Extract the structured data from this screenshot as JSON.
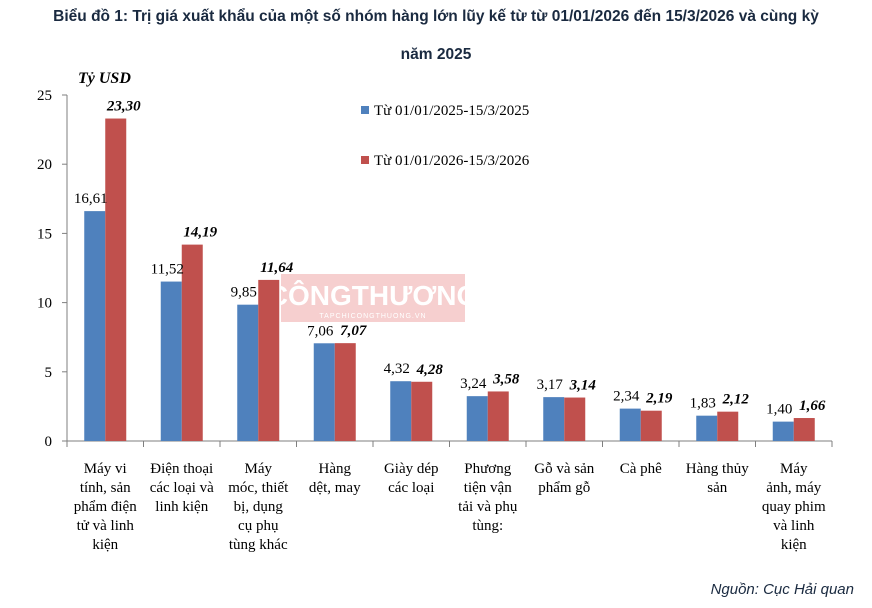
{
  "title_line1": "Biểu đồ 1: Trị giá xuất khẩu của một số nhóm hàng lớn lũy kế từ từ 01/01/2026 đến 15/3/2026 và cùng kỳ",
  "title_line2": "năm 2025",
  "source": "Nguồn: Cục Hải quan",
  "watermark": {
    "main": "CÔNGTHƯƠNG",
    "sub": "TAPCHICONGTHUONG.VN"
  },
  "colors": {
    "series_2025": "#4f81bd",
    "series_2026": "#c0504d",
    "text": "#000000"
  },
  "chart_data": {
    "type": "bar",
    "ylabel": "Tỷ USD",
    "ylim": [
      0,
      25
    ],
    "yticks": [
      0,
      5,
      10,
      15,
      20,
      25
    ],
    "legend_position": "top-center",
    "grid": false,
    "categories": [
      [
        "Máy vi",
        "tính, sản",
        "phẩm điện",
        "tử và linh",
        "kiện"
      ],
      [
        "Điện thoại",
        "các loại và",
        "linh kiện"
      ],
      [
        "Máy",
        "móc, thiết",
        "bị, dụng",
        "cụ phụ",
        "tùng khác"
      ],
      [
        "Hàng",
        "dệt, may"
      ],
      [
        "Giày dép",
        "các loại"
      ],
      [
        "Phương",
        "tiện vận",
        "tải và phụ",
        "tùng:"
      ],
      [
        "Gỗ và sản",
        "phẩm gỗ"
      ],
      [
        "Cà phê"
      ],
      [
        "Hàng thủy",
        "sản"
      ],
      [
        "Máy",
        "ảnh, máy",
        "quay phim",
        "và linh",
        "kiện"
      ]
    ],
    "series": [
      {
        "name": "Từ 01/01/2025-15/3/2025",
        "values": [
          16.61,
          11.52,
          9.85,
          7.06,
          4.32,
          3.24,
          3.17,
          2.34,
          1.83,
          1.4
        ],
        "labels": [
          "16,61",
          "11,52",
          "9,85",
          "7,06",
          "4,32",
          "3,24",
          "3,17",
          "2,34",
          "1,83",
          "1,40"
        ]
      },
      {
        "name": "Từ 01/01/2026-15/3/2026",
        "values": [
          23.3,
          14.19,
          11.64,
          7.07,
          4.28,
          3.58,
          3.14,
          2.19,
          2.12,
          1.66
        ],
        "labels": [
          "23,30",
          "14,19",
          "11,64",
          "7,07",
          "4,28",
          "3,58",
          "3,14",
          "2,19",
          "2,12",
          "1,66"
        ]
      }
    ]
  }
}
